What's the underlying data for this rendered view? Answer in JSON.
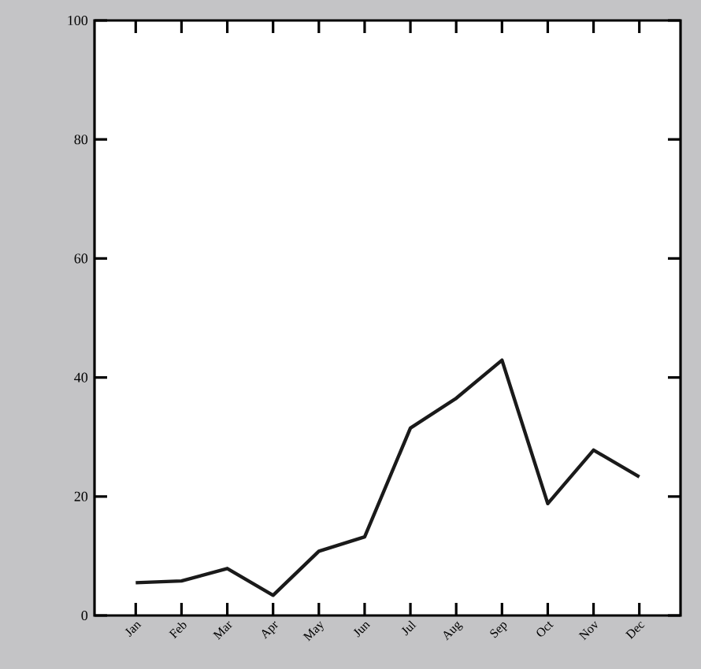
{
  "chart_data": {
    "type": "line",
    "categories": [
      "Jan",
      "Feb",
      "Mar",
      "Apr",
      "May",
      "Jun",
      "Jul",
      "Aug",
      "Sep",
      "Oct",
      "Nov",
      "Dec"
    ],
    "series": [
      {
        "color": "#1a1a1a",
        "values": [
          5.5,
          5.8,
          7.9,
          3.4,
          10.8,
          13.2,
          31.5,
          36.5,
          42.9,
          18.8,
          27.8,
          23.3
        ]
      }
    ],
    "ylim": [
      0,
      100
    ],
    "yticks": [
      0,
      20,
      40,
      60,
      80,
      100
    ],
    "grid": false,
    "marker": "none",
    "line_style": "solid"
  }
}
